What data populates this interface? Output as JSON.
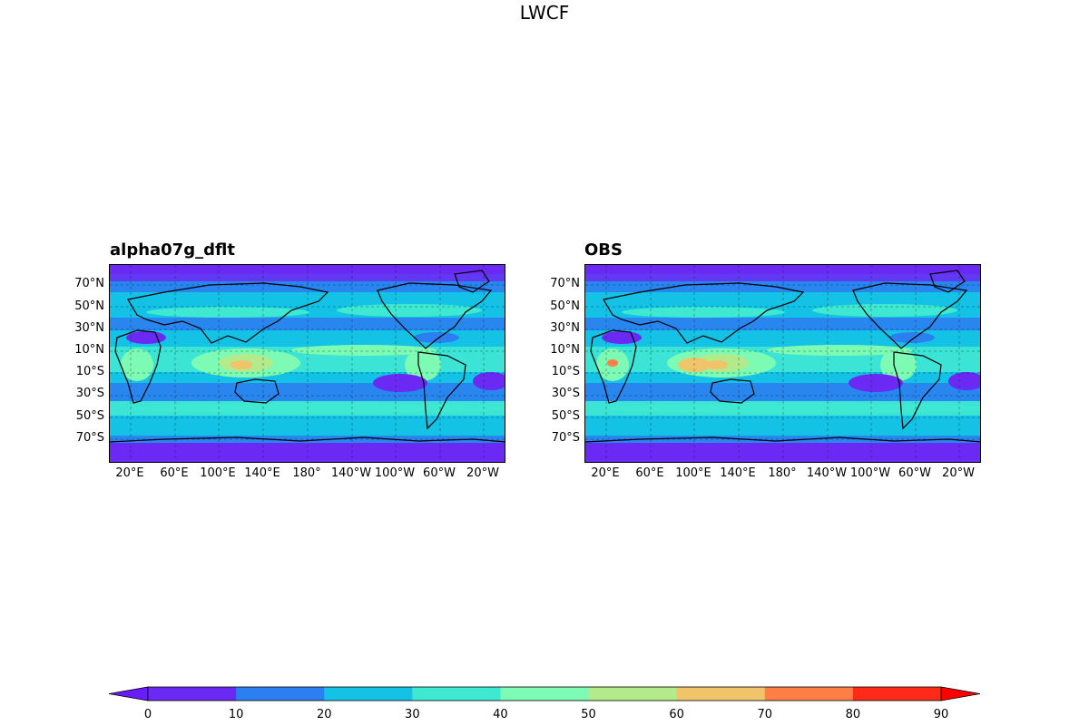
{
  "figure": {
    "title": "LWCF"
  },
  "panels": [
    {
      "id": "left",
      "title": "alpha07g_dflt"
    },
    {
      "id": "right",
      "title": "OBS"
    }
  ],
  "lat_ticks": [
    "70°N",
    "50°N",
    "30°N",
    "10°N",
    "10°S",
    "30°S",
    "50°S",
    "70°S"
  ],
  "lon_ticks": [
    "20°E",
    "60°E",
    "100°E",
    "140°E",
    "180°",
    "140°W",
    "100°W",
    "60°W",
    "20°W"
  ],
  "colorbar": {
    "levels": [
      "0",
      "10",
      "20",
      "30",
      "40",
      "50",
      "60",
      "70",
      "80",
      "90"
    ],
    "colors": [
      "#6a1bff",
      "#6a2af4",
      "#2c7ff0",
      "#14c2e6",
      "#3fe8d1",
      "#7dfab3",
      "#b3ea8b",
      "#f0c46a",
      "#fd7f45",
      "#ff2a18",
      "#ff0000"
    ],
    "extend": "both"
  },
  "chart_data": [
    {
      "type": "heatmap",
      "title": "alpha07g_dflt",
      "variable": "LWCF",
      "projection": "PlateCarree (central longitude 180°)",
      "levels": [
        0,
        10,
        20,
        30,
        40,
        50,
        60,
        70,
        80,
        90
      ],
      "features": [
        "coastlines",
        "dashed lat/lon gridlines"
      ]
    },
    {
      "type": "heatmap",
      "title": "OBS",
      "variable": "LWCF",
      "projection": "PlateCarree (central longitude 180°)",
      "levels": [
        0,
        10,
        20,
        30,
        40,
        50,
        60,
        70,
        80,
        90
      ],
      "features": [
        "coastlines",
        "dashed lat/lon gridlines"
      ]
    }
  ]
}
